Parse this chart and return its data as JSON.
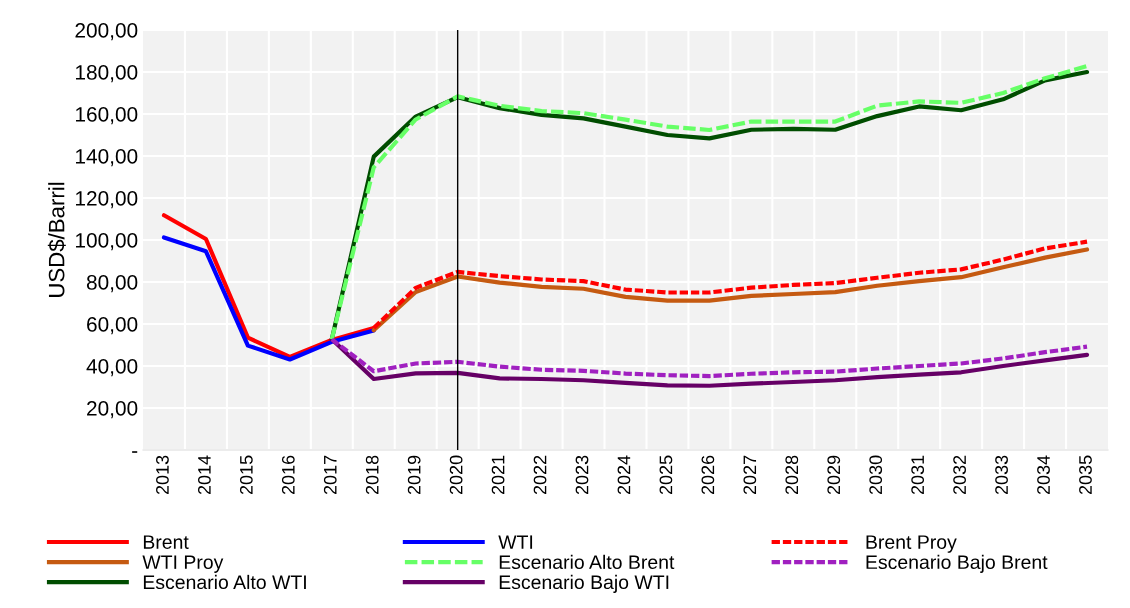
{
  "chart_data": {
    "type": "line",
    "ylabel": "USD$/Barril",
    "categories": [
      "2013",
      "2014",
      "2015",
      "2016",
      "2017",
      "2018",
      "2019",
      "2020",
      "2021",
      "2022",
      "2023",
      "2024",
      "2025",
      "2026",
      "2027",
      "2028",
      "2029",
      "2030",
      "2031",
      "2032",
      "2033",
      "2034",
      "2035"
    ],
    "series": [
      {
        "name": "Brent",
        "color": "#ff0000",
        "line_style": "solid",
        "values": [
          111.8,
          100.5,
          53.5,
          44.3,
          52.4,
          58.1,
          null,
          null,
          null,
          null,
          null,
          null,
          null,
          null,
          null,
          null,
          null,
          null,
          null,
          null,
          null,
          null,
          null
        ]
      },
      {
        "name": "WTI",
        "color": "#0000ff",
        "line_style": "solid",
        "values": [
          101.2,
          94.6,
          49.7,
          43.1,
          51.5,
          56.9,
          null,
          null,
          null,
          null,
          null,
          null,
          null,
          null,
          null,
          null,
          null,
          null,
          null,
          null,
          null,
          null,
          null
        ]
      },
      {
        "name": "Brent Proy",
        "color": "#ff0000",
        "line_style": "dotted",
        "values": [
          null,
          null,
          null,
          null,
          null,
          58.1,
          77.2,
          84.8,
          82.8,
          81.2,
          80.4,
          76.4,
          75,
          75,
          77.3,
          78.6,
          79.5,
          82,
          84.4,
          86,
          90.7,
          96,
          99.2
        ]
      },
      {
        "name": "WTI Proy",
        "color": "#c55a11",
        "line_style": "solid",
        "values": [
          null,
          null,
          null,
          null,
          null,
          57,
          75.2,
          82.6,
          79.7,
          77.7,
          76.8,
          72.9,
          71.1,
          71.1,
          73.4,
          74.3,
          75.2,
          78.2,
          80.4,
          82.3,
          87,
          91.6,
          95.5
        ]
      },
      {
        "name": "Escenario Alto Brent",
        "color": "#66ff66",
        "line_style": "dashed",
        "values": [
          null,
          null,
          null,
          null,
          52.7,
          134.6,
          157.4,
          168.4,
          163.9,
          161.4,
          160.4,
          157.3,
          154,
          152.4,
          156.4,
          156.4,
          156.4,
          164,
          166,
          165.3,
          170,
          177,
          182.8
        ]
      },
      {
        "name": "Escenario Bajo Brent",
        "color": "#a020c0",
        "line_style": "dotted",
        "values": [
          null,
          null,
          null,
          null,
          52.7,
          37.5,
          41.2,
          42,
          39.7,
          38.2,
          37.7,
          36.4,
          35.6,
          35.2,
          36.3,
          37,
          37.3,
          38.8,
          40,
          41.2,
          43.6,
          46.6,
          49.2
        ]
      },
      {
        "name": "Escenario Alto WTI",
        "color": "#004d00",
        "line_style": "solid",
        "values": [
          null,
          null,
          null,
          null,
          52.7,
          139.7,
          158.8,
          168,
          162.8,
          159.6,
          157.9,
          154,
          150,
          148.4,
          152.5,
          152.9,
          152.5,
          159,
          163.6,
          161.8,
          167,
          176,
          180
        ]
      },
      {
        "name": "Escenario Bajo WTI",
        "color": "#660066",
        "line_style": "solid",
        "values": [
          null,
          null,
          null,
          null,
          52.7,
          33.8,
          36.5,
          36.7,
          34.1,
          33.8,
          33.2,
          32,
          30.8,
          30.6,
          31.6,
          32.4,
          33.2,
          34.7,
          35.9,
          37,
          40,
          42.7,
          45.3
        ]
      }
    ],
    "ylim": [
      0,
      200
    ],
    "yticks": [
      {
        "value": 0,
        "label": "-"
      },
      {
        "value": 20,
        "label": "20,00"
      },
      {
        "value": 40,
        "label": "40,00"
      },
      {
        "value": 60,
        "label": "60,00"
      },
      {
        "value": 80,
        "label": "80,00"
      },
      {
        "value": 100,
        "label": "100,00"
      },
      {
        "value": 120,
        "label": "120,00"
      },
      {
        "value": 140,
        "label": "140,00"
      },
      {
        "value": 160,
        "label": "160,00"
      },
      {
        "value": 180,
        "label": "180,00"
      },
      {
        "value": 200,
        "label": "200,00"
      }
    ],
    "ref_lines": [
      {
        "axis": "x",
        "value": "2020",
        "color": "#000000",
        "line_style": "solid"
      }
    ],
    "grid": true,
    "legend": "bottom",
    "marker": "none"
  }
}
